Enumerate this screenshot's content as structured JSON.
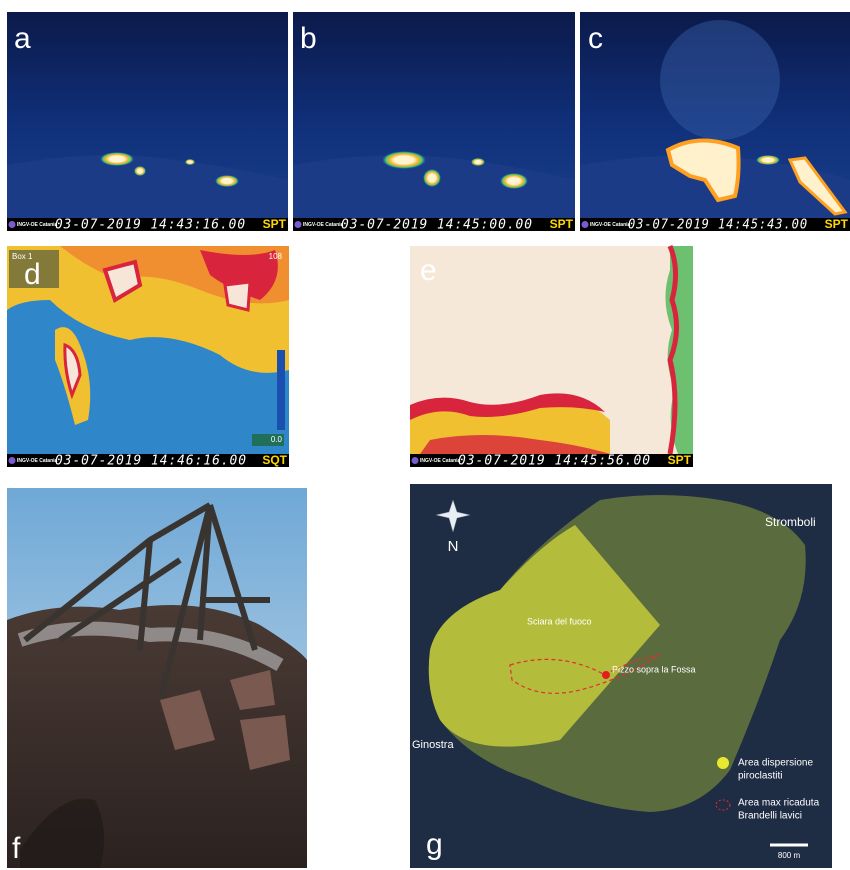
{
  "panels": [
    {
      "label": "a",
      "logo": "INGV-OE Catania",
      "timestamp": "03-07-2019 14:43:16.00",
      "code": "SPT"
    },
    {
      "label": "b",
      "logo": "INGV-OE Catania",
      "timestamp": "03-07-2019 14:45:00.00",
      "code": "SPT"
    },
    {
      "label": "c",
      "logo": "INGV-OE Catania",
      "timestamp": "03-07-2019 14:45:43.00",
      "code": "SPT"
    },
    {
      "label": "d",
      "logo": "INGV-OE Catania",
      "timestamp": "03-07-2019 14:46:16.00",
      "code": "SQT",
      "overlay": [
        "Box 1",
        "108",
        "0.0"
      ]
    },
    {
      "label": "e",
      "logo": "INGV-OE Catania",
      "timestamp": "03-07-2019 14:45:56.00",
      "code": "SPT"
    },
    {
      "label": "f"
    },
    {
      "label": "g"
    }
  ],
  "map": {
    "north": "N",
    "places": [
      "Stromboli",
      "Sciara del fuoco",
      "Pizzo sopra la Fossa",
      "Ginostra"
    ],
    "legend": [
      {
        "lines": [
          "Area dispersione",
          "piroclastiti"
        ]
      },
      {
        "lines": [
          "Area max ricaduta",
          "Brandelli lavici"
        ]
      }
    ],
    "scale": "800 m"
  }
}
